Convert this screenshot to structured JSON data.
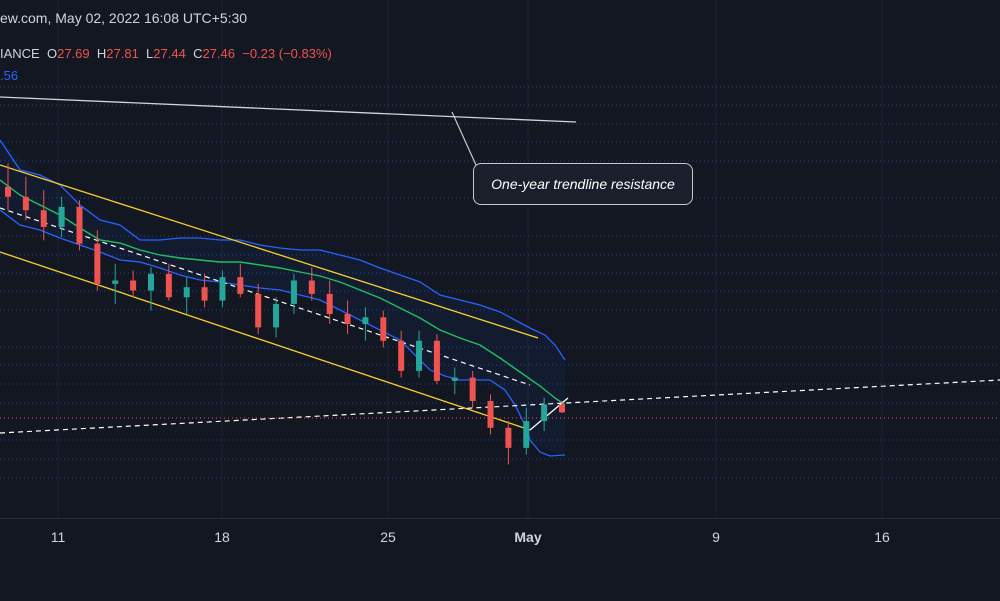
{
  "header": {
    "source_datetime": "ew.com, May 02, 2022 16:08 UTC+5:30",
    "symbol_fragment": "IANCE",
    "ohlc": {
      "o_label": "O",
      "o": "27.69",
      "h_label": "H",
      "h": "27.81",
      "l_label": "L",
      "l": "27.44",
      "c_label": "C",
      "c": "27.46",
      "change": "−0.23 (−0.83%)"
    },
    "indicator_fragment": ".56"
  },
  "annotation": {
    "text": "One-year trendline resistance"
  },
  "colors": {
    "background": "#131722",
    "up_candle": "#26a69a",
    "down_candle": "#ef5350",
    "bollinger_band": "#2962ff",
    "bollinger_basis": "#21c05e",
    "channel": "#f7d12e",
    "trendline": "#d1d4dc",
    "horizontal_levels": "#2962ff",
    "last_price_line": "#ef5350"
  },
  "chart_data": {
    "type": "candlestick",
    "title": "",
    "x_axis_ticks": [
      "11",
      "18",
      "25",
      "May",
      "9",
      "16"
    ],
    "grid": true,
    "last_close": 27.46,
    "ohlc_candles_approx": [
      {
        "o": 34.2,
        "h": 34.9,
        "l": 33.5,
        "c": 33.9
      },
      {
        "o": 33.9,
        "h": 34.5,
        "l": 33.2,
        "c": 33.5
      },
      {
        "o": 33.5,
        "h": 34.1,
        "l": 32.6,
        "c": 33.0
      },
      {
        "o": 33.0,
        "h": 33.9,
        "l": 32.7,
        "c": 33.6
      },
      {
        "o": 33.6,
        "h": 33.8,
        "l": 32.3,
        "c": 32.5
      },
      {
        "o": 32.5,
        "h": 32.9,
        "l": 31.1,
        "c": 31.3
      },
      {
        "o": 31.3,
        "h": 31.9,
        "l": 30.7,
        "c": 31.4
      },
      {
        "o": 31.4,
        "h": 31.7,
        "l": 30.9,
        "c": 31.1
      },
      {
        "o": 31.1,
        "h": 31.8,
        "l": 30.5,
        "c": 31.6
      },
      {
        "o": 31.6,
        "h": 31.9,
        "l": 30.8,
        "c": 30.9
      },
      {
        "o": 30.9,
        "h": 31.5,
        "l": 30.4,
        "c": 31.2
      },
      {
        "o": 31.2,
        "h": 31.6,
        "l": 30.6,
        "c": 30.8
      },
      {
        "o": 30.8,
        "h": 31.7,
        "l": 30.6,
        "c": 31.5
      },
      {
        "o": 31.5,
        "h": 31.9,
        "l": 30.9,
        "c": 31.0
      },
      {
        "o": 31.0,
        "h": 31.3,
        "l": 29.8,
        "c": 30.0
      },
      {
        "o": 30.0,
        "h": 30.9,
        "l": 29.7,
        "c": 30.7
      },
      {
        "o": 30.7,
        "h": 31.6,
        "l": 30.4,
        "c": 31.4
      },
      {
        "o": 31.4,
        "h": 31.8,
        "l": 30.8,
        "c": 31.0
      },
      {
        "o": 31.0,
        "h": 31.4,
        "l": 30.1,
        "c": 30.4
      },
      {
        "o": 30.4,
        "h": 30.8,
        "l": 29.8,
        "c": 30.1
      },
      {
        "o": 30.1,
        "h": 30.6,
        "l": 29.6,
        "c": 30.3
      },
      {
        "o": 30.3,
        "h": 30.5,
        "l": 29.4,
        "c": 29.6
      },
      {
        "o": 29.6,
        "h": 29.9,
        "l": 28.5,
        "c": 28.7
      },
      {
        "o": 28.7,
        "h": 29.9,
        "l": 28.5,
        "c": 29.6
      },
      {
        "o": 29.6,
        "h": 29.8,
        "l": 28.3,
        "c": 28.4
      },
      {
        "o": 28.4,
        "h": 28.8,
        "l": 28.0,
        "c": 28.5
      },
      {
        "o": 28.5,
        "h": 28.7,
        "l": 27.6,
        "c": 27.8
      },
      {
        "o": 27.8,
        "h": 28.0,
        "l": 26.8,
        "c": 27.0
      },
      {
        "o": 27.0,
        "h": 27.2,
        "l": 25.9,
        "c": 26.4
      },
      {
        "o": 26.4,
        "h": 27.6,
        "l": 26.2,
        "c": 27.2
      },
      {
        "o": 27.2,
        "h": 27.9,
        "l": 26.9,
        "c": 27.7
      },
      {
        "o": 27.69,
        "h": 27.81,
        "l": 27.44,
        "c": 27.46
      }
    ]
  }
}
